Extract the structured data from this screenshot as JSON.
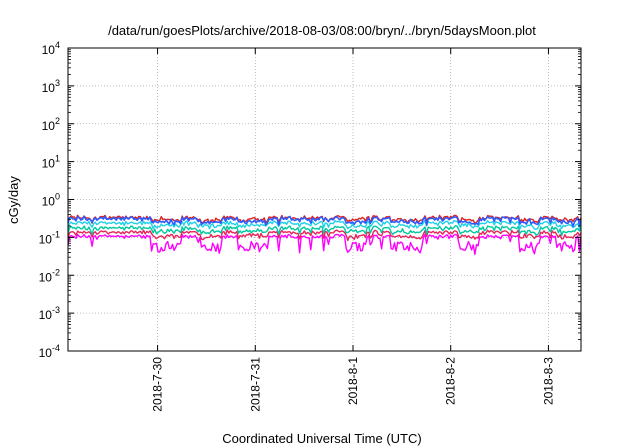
{
  "chart_data": {
    "type": "line",
    "title": "/data/run/goesPlots/archive/2018-08-03/08:00/bryn/../bryn/5daysMoon.plot",
    "xlabel": "Coordinated Universal Time (UTC)",
    "ylabel": "cGy/day",
    "x_range": [
      "2018-07-29T02:00",
      "2018-08-03T08:00"
    ],
    "x_ticks": [
      "2018-7-30",
      "2018-7-31",
      "2018-8-1",
      "2018-8-2",
      "2018-8-3"
    ],
    "y_scale": "log",
    "ylim": [
      0.0001,
      10000
    ],
    "y_ticks": [
      {
        "base": "10",
        "exp": "4"
      },
      {
        "base": "10",
        "exp": "3"
      },
      {
        "base": "10",
        "exp": "2"
      },
      {
        "base": "10",
        "exp": "1"
      },
      {
        "base": "10",
        "exp": "0"
      },
      {
        "base": "10",
        "exp": "-1"
      },
      {
        "base": "10",
        "exp": "-2"
      },
      {
        "base": "10",
        "exp": "-3"
      },
      {
        "base": "10",
        "exp": "-4"
      }
    ],
    "grid": true,
    "series": [
      {
        "color": "#ff00ff",
        "level": 0.105,
        "dip": 0.55
      },
      {
        "color": "#e8245a",
        "level": 0.135,
        "dip": 0.7
      },
      {
        "color": "#00c8a0",
        "level": 0.175,
        "dip": 0.72
      },
      {
        "color": "#20d0e8",
        "level": 0.24,
        "dip": 0.75
      },
      {
        "color": "#dd2222",
        "level": 0.33,
        "dip": 0.78
      },
      {
        "color": "#2a5cff",
        "level": 0.31,
        "dip": 0.72
      }
    ]
  }
}
